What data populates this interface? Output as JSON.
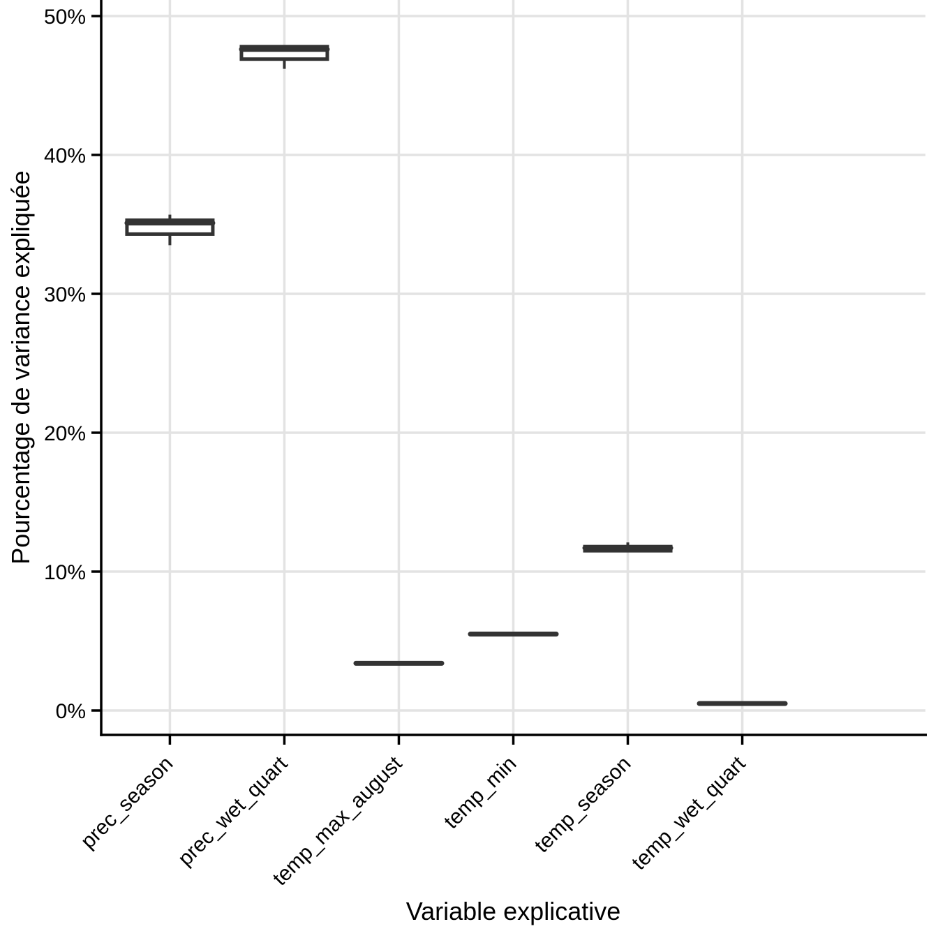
{
  "chart_data": {
    "type": "boxplot",
    "orientation": "vertical",
    "title": "",
    "xlabel": "Variable explicative",
    "ylabel": "Pourcentage de variance expliquée",
    "categories": [
      "prec_season",
      "prec_wet_quart",
      "temp_max_august",
      "temp_min",
      "temp_season",
      "temp_wet_quart"
    ],
    "y_ticks": [
      {
        "value": 0,
        "label": "0%"
      },
      {
        "value": 10,
        "label": "10%"
      },
      {
        "value": 20,
        "label": "20%"
      },
      {
        "value": 30,
        "label": "30%"
      },
      {
        "value": 40,
        "label": "40%"
      },
      {
        "value": 50,
        "label": "50%"
      }
    ],
    "ylim": [
      -1.8,
      51.2
    ],
    "grid": true,
    "legend_position": "none",
    "boxes": [
      {
        "category": "prec_season",
        "min": 33.5,
        "q1": 34.3,
        "median": 35.1,
        "q3": 35.3,
        "max": 35.7
      },
      {
        "category": "prec_wet_quart",
        "min": 46.2,
        "q1": 46.9,
        "median": 47.6,
        "q3": 47.8,
        "max": 47.9
      },
      {
        "category": "temp_max_august",
        "min": 3.4,
        "q1": 3.4,
        "median": 3.4,
        "q3": 3.4,
        "max": 3.4
      },
      {
        "category": "temp_min",
        "min": 5.5,
        "q1": 5.5,
        "median": 5.5,
        "q3": 5.5,
        "max": 5.5
      },
      {
        "category": "temp_season",
        "min": 11.5,
        "q1": 11.5,
        "median": 11.7,
        "q3": 11.8,
        "max": 12.1
      },
      {
        "category": "temp_wet_quart",
        "min": 0.5,
        "q1": 0.5,
        "median": 0.5,
        "q3": 0.5,
        "max": 0.5
      }
    ],
    "colors": {
      "box_stroke": "#333333",
      "box_fill": "#ffffff",
      "grid": "#e3e3e3",
      "axis": "#000000",
      "text": "#000000",
      "background": "#ffffff"
    }
  }
}
